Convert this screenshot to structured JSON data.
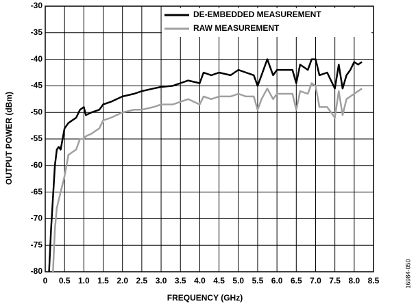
{
  "chart_data": {
    "type": "line",
    "xlabel": "FREQUENCY (GHz)",
    "ylabel": "OUTPUT POWER (dBm)",
    "figure_id": "16984-050",
    "x": [
      0.1,
      0.15,
      0.2,
      0.25,
      0.3,
      0.35,
      0.4,
      0.5,
      0.6,
      0.7,
      0.8,
      0.9,
      1.0,
      1.05,
      1.2,
      1.4,
      1.5,
      1.7,
      2.0,
      2.3,
      2.5,
      2.8,
      3.0,
      3.3,
      3.5,
      3.7,
      4.0,
      4.1,
      4.3,
      4.5,
      4.8,
      5.0,
      5.2,
      5.4,
      5.5,
      5.6,
      5.75,
      5.9,
      6.0,
      6.2,
      6.4,
      6.5,
      6.6,
      6.8,
      6.9,
      7.0,
      7.1,
      7.3,
      7.5,
      7.6,
      7.7,
      7.8,
      7.9,
      8.0,
      8.1,
      8.2
    ],
    "series": [
      {
        "name": "DE-EMBEDDED MEASUREMENT",
        "color": "#000000",
        "values": [
          -80,
          -72,
          -66,
          -60,
          -57,
          -56.5,
          -57,
          -53,
          -52,
          -51.5,
          -51,
          -49.5,
          -49,
          -50.5,
          -50,
          -49.5,
          -48.5,
          -48,
          -47,
          -46.5,
          -46,
          -45.5,
          -45.2,
          -45,
          -44.5,
          -44,
          -44.5,
          -42.5,
          -43,
          -42.5,
          -43,
          -42,
          -42.5,
          -43,
          -45,
          -43,
          -40,
          -43,
          -42,
          -42,
          -42,
          -44.5,
          -41,
          -42,
          -40,
          -40,
          -43,
          -42.5,
          -45.5,
          -41,
          -45.5,
          -43,
          -42,
          -40.5,
          -41,
          -40.5
        ]
      },
      {
        "name": "RAW MEASUREMENT",
        "color": "#a0a0a0",
        "values": [
          null,
          null,
          -80,
          -72,
          -68,
          -66.5,
          -65,
          -62,
          -58,
          -57.5,
          -57,
          -55,
          -55,
          -54.5,
          -54,
          -53,
          -51.5,
          -51,
          -50,
          -49.5,
          -49.5,
          -49,
          -48.5,
          -48.5,
          -48,
          -47.5,
          -48.5,
          -47,
          -47.5,
          -47,
          -47,
          -46.5,
          -47,
          -47,
          -49.5,
          -47.5,
          -45.5,
          -47.5,
          -46.5,
          -46.5,
          -46.5,
          -49.5,
          -46,
          -46.5,
          -44.5,
          -45,
          -49,
          -49,
          -51,
          -46,
          -50.5,
          -47.5,
          -47,
          -46.5,
          -46,
          -45.5
        ]
      }
    ],
    "xlim": [
      0,
      8.5
    ],
    "xticks": [
      0,
      0.5,
      {
        "value": 1,
        "label": "1.0"
      },
      1.5,
      {
        "value": 2,
        "label": "2.0"
      },
      2.5,
      {
        "value": 3,
        "label": "3.0"
      },
      3.5,
      {
        "value": 4,
        "label": "4.0"
      },
      4.5,
      {
        "value": 5,
        "label": "5.0"
      },
      5.5,
      {
        "value": 6,
        "label": "6.0"
      },
      6.5,
      {
        "value": 7,
        "label": "7.0"
      },
      7.5,
      {
        "value": 8,
        "label": "8.0"
      },
      8.5
    ],
    "ylim": [
      -80,
      -30
    ],
    "yticks": [
      -80,
      -75,
      -70,
      -65,
      -60,
      -55,
      -50,
      -45,
      -40,
      -35,
      -30
    ],
    "grid": true,
    "legend": "upper right"
  }
}
